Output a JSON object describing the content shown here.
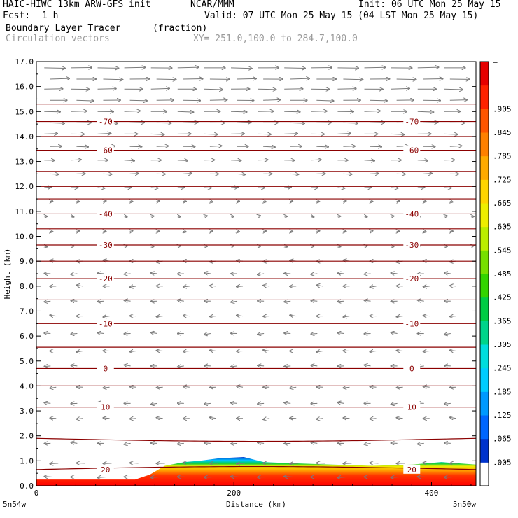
{
  "header": {
    "model": "HAIC-HIWC 13km ARW-GFS init",
    "org": "NCAR/MMM",
    "init": "Init: 06 UTC Mon 25 May 15",
    "fcst_label": "Fcst:",
    "fcst_value": "1 h",
    "valid": "Valid: 07 UTC Mon 25 May 15 (04 LST Mon 25 May 15)",
    "field_name": "Boundary Layer Tracer",
    "field_units": "(fraction)",
    "vector_label": "Circulation vectors",
    "xy_label": "XY= 251.0,100.0 to 284.7,100.0"
  },
  "colors": {
    "contour": "#8b0000",
    "vector": "#7a7a7a",
    "axis": "#000000"
  },
  "chart_data": {
    "type": "heatmap",
    "title": "Boundary Layer Tracer",
    "ylabel": "Height (km)",
    "xlabel": "Distance (km)",
    "xlim": [
      0,
      445
    ],
    "ylim": [
      0,
      17
    ],
    "x_ticks": [
      0,
      200,
      400
    ],
    "y_ticks": [
      "0.0",
      "1.0",
      "2.0",
      "3.0",
      "4.0",
      "5.0",
      "6.0",
      "7.0",
      "8.0",
      "9.0",
      "10.0",
      "11.0",
      "12.0",
      "13.0",
      "14.0",
      "15.0",
      "16.0",
      "17.0"
    ],
    "x_endpoints": {
      "left": "5n54w",
      "right": "5n50w"
    },
    "colorbar": {
      "labels": [
        ".005",
        ".065",
        ".125",
        ".185",
        ".245",
        ".305",
        ".365",
        ".425",
        ".485",
        ".545",
        ".605",
        ".665",
        ".725",
        ".785",
        ".845",
        ".905"
      ],
      "top_label": "–",
      "colors": [
        "#0033cc",
        "#0066ff",
        "#0099ff",
        "#00ccff",
        "#00dddd",
        "#00d48a",
        "#00cc44",
        "#33d400",
        "#77e000",
        "#bbee00",
        "#eeee00",
        "#ffd400",
        "#ffaa00",
        "#ff8000",
        "#ff5500",
        "#ff2200",
        "#e60000"
      ]
    },
    "temperature_contours": [
      {
        "label": "20",
        "height_km": 0.65
      },
      {
        "label": "10",
        "height_km": 3.15
      },
      {
        "label": "0",
        "height_km": 4.7
      },
      {
        "label": "-10",
        "height_km": 6.5
      },
      {
        "label": "-20",
        "height_km": 8.3
      },
      {
        "label": "-30",
        "height_km": 9.65
      },
      {
        "label": "-40",
        "height_km": 10.9
      },
      {
        "label": "-60",
        "height_km": 13.45
      },
      {
        "label": "-70",
        "height_km": 14.6
      }
    ],
    "contour_levels_km": [
      0.65,
      1.9,
      3.15,
      4.0,
      4.7,
      5.55,
      6.5,
      7.45,
      8.3,
      9.0,
      9.65,
      10.3,
      10.9,
      11.5,
      12.0,
      12.6,
      13.45,
      14.0,
      14.6,
      15.3
    ],
    "tracer_profile": {
      "x_km": [
        0,
        60,
        100,
        115,
        130,
        150,
        165,
        185,
        210,
        230,
        260,
        300,
        340,
        380,
        410,
        445
      ],
      "top_km": [
        0.25,
        0.25,
        0.25,
        0.45,
        0.8,
        0.95,
        1.0,
        1.1,
        1.15,
        0.95,
        0.9,
        0.85,
        0.8,
        0.85,
        0.95,
        0.85
      ]
    },
    "vector_rows_km": [
      0.35,
      0.9,
      1.7,
      2.7,
      3.3,
      3.95,
      4.8,
      5.4,
      6.1,
      6.8,
      7.4,
      8.0,
      8.5,
      9.0,
      9.6,
      10.2,
      10.8,
      11.4,
      11.95,
      12.5,
      13.05,
      13.6,
      14.1,
      14.55,
      15.0,
      15.45,
      15.9,
      16.3,
      16.75
    ]
  }
}
